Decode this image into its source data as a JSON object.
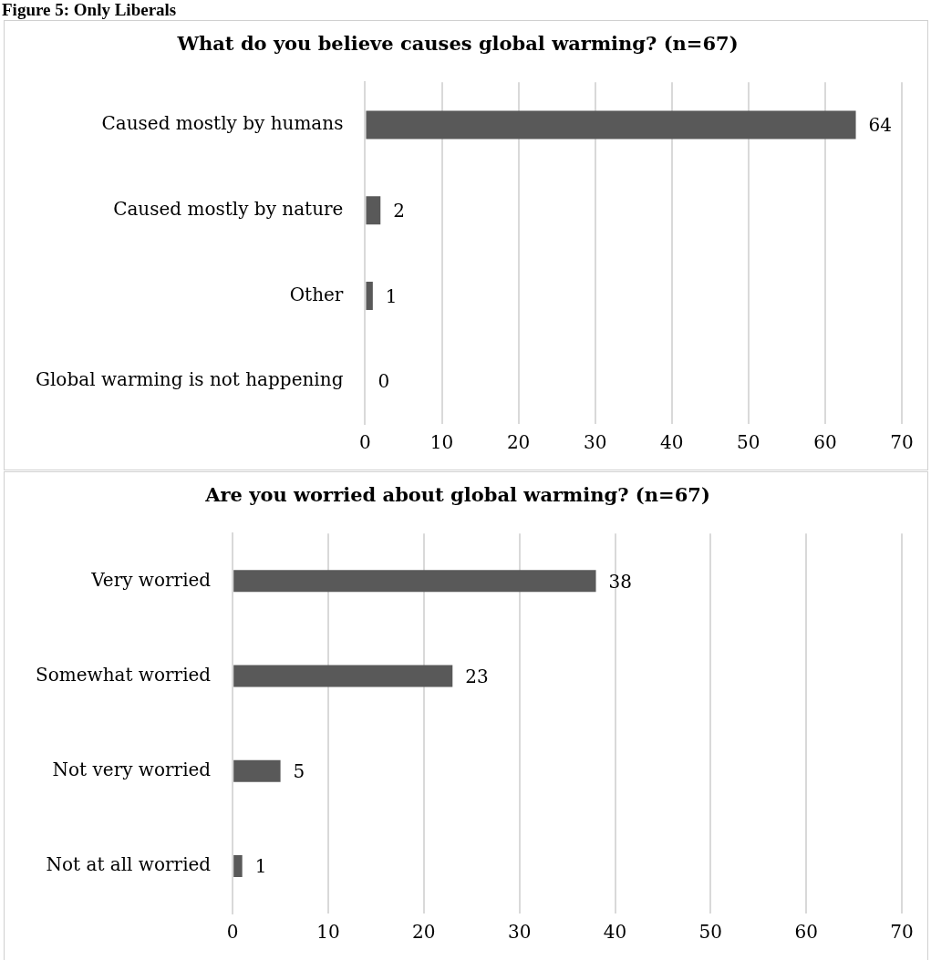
{
  "chart_data": [
    {
      "type": "bar",
      "orientation": "horizontal",
      "title": "What do you believe causes global warming? (n=67)",
      "annotations": [
        "Figure 5: Only Liberals"
      ],
      "categories": [
        "Caused mostly by humans",
        "Caused mostly by nature",
        "Other",
        "Global warming is not happening"
      ],
      "values": [
        64,
        2,
        1,
        0
      ],
      "color": "#595959",
      "xlim": [
        0,
        70
      ],
      "xticks": [
        0,
        10,
        20,
        30,
        40,
        50,
        60,
        70
      ],
      "grid": "x",
      "data_labels": true,
      "legend": false
    },
    {
      "type": "bar",
      "orientation": "horizontal",
      "title": "Are you worried about global warming? (n=67)",
      "categories": [
        "Very worried",
        "Somewhat worried",
        "Not very worried",
        "Not at all worried"
      ],
      "values": [
        38,
        23,
        5,
        1
      ],
      "color": "#595959",
      "xlim": [
        0,
        70
      ],
      "xticks": [
        0,
        10,
        20,
        30,
        40,
        50,
        60,
        70
      ],
      "grid": "x",
      "data_labels": true,
      "legend": false
    }
  ]
}
